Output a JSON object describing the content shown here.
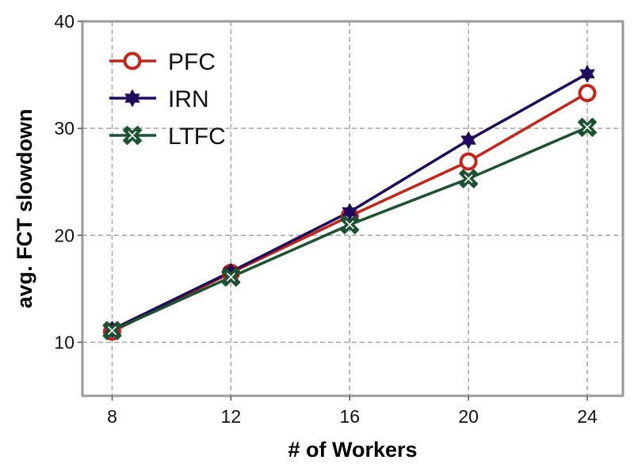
{
  "chart_data": {
    "type": "line",
    "xlabel": "# of Workers",
    "ylabel": "avg. FCT slowdown",
    "x": [
      8,
      12,
      16,
      20,
      24
    ],
    "xticks": [
      "8",
      "12",
      "16",
      "20",
      "24"
    ],
    "yticks": [
      "10",
      "20",
      "30",
      "40"
    ],
    "xlim": [
      7,
      25.2
    ],
    "ylim": [
      5,
      40
    ],
    "grid": true,
    "legend_position": "top-left",
    "series": [
      {
        "name": "PFC",
        "values": [
          11.0,
          16.5,
          21.8,
          26.9,
          33.3
        ],
        "color": "#c0271a",
        "marker": "circle"
      },
      {
        "name": "IRN",
        "values": [
          11.2,
          16.6,
          22.2,
          28.9,
          35.1
        ],
        "color": "#1f0b5c",
        "marker": "star"
      },
      {
        "name": "LTFC",
        "values": [
          11.1,
          16.1,
          21.0,
          25.3,
          30.1
        ],
        "color": "#1c5232",
        "marker": "x-square"
      }
    ]
  }
}
